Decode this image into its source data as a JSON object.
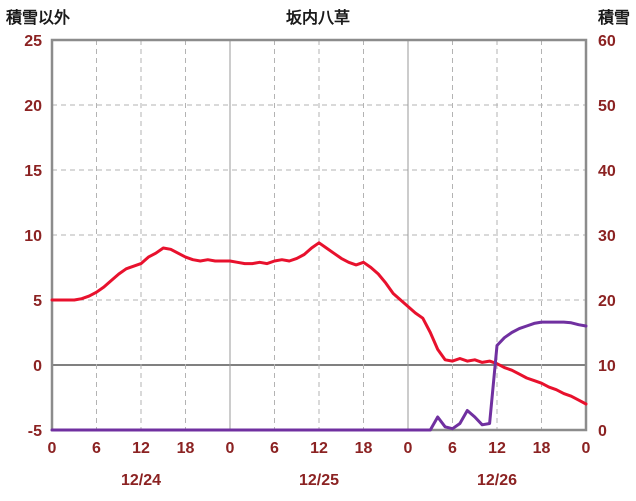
{
  "chart_data": {
    "type": "line",
    "title": "坂内八草",
    "left_axis": {
      "label": "積雪以外",
      "min": -5,
      "max": 25,
      "ticks": [
        25,
        20,
        15,
        10,
        5,
        0,
        -5
      ]
    },
    "right_axis": {
      "label": "積雪",
      "min": 0,
      "max": 60,
      "ticks": [
        60,
        50,
        40,
        30,
        20,
        10,
        0
      ]
    },
    "x_axis": {
      "min": 0,
      "max": 72,
      "tick_step": 6,
      "tick_labels": [
        "0",
        "6",
        "12",
        "18",
        "0",
        "6",
        "12",
        "18",
        "0",
        "6",
        "12",
        "18",
        "0"
      ],
      "day_labels": [
        {
          "label": "12/24",
          "x": 12
        },
        {
          "label": "12/25",
          "x": 36
        },
        {
          "label": "12/26",
          "x": 60
        }
      ],
      "day_boundaries": [
        24,
        48
      ]
    },
    "series": [
      {
        "name": "積雪以外",
        "axis": "left",
        "color": "#e8112d",
        "x_start": 0,
        "x_step": 1,
        "values": [
          5,
          5,
          5,
          5,
          5.1,
          5.3,
          5.6,
          6,
          6.5,
          7,
          7.4,
          7.6,
          7.8,
          8.3,
          8.6,
          9,
          8.9,
          8.6,
          8.3,
          8.1,
          8,
          8.1,
          8,
          8,
          8,
          7.9,
          7.8,
          7.8,
          7.9,
          7.8,
          8,
          8.1,
          8,
          8.2,
          8.5,
          9,
          9.4,
          9,
          8.6,
          8.2,
          7.9,
          7.7,
          7.9,
          7.5,
          7,
          6.3,
          5.5,
          5,
          4.5,
          4,
          3.6,
          2.5,
          1.2,
          0.4,
          0.3,
          0.5,
          0.3,
          0.4,
          0.2,
          0.3,
          0.1,
          -0.2,
          -0.4,
          -0.7,
          -1,
          -1.2,
          -1.4,
          -1.7,
          -1.9,
          -2.2,
          -2.4,
          -2.7,
          -3
        ]
      },
      {
        "name": "積雪",
        "axis": "right",
        "color": "#7030a0",
        "x_start": 0,
        "x_step": 1,
        "values": [
          0,
          0,
          0,
          0,
          0,
          0,
          0,
          0,
          0,
          0,
          0,
          0,
          0,
          0,
          0,
          0,
          0,
          0,
          0,
          0,
          0,
          0,
          0,
          0,
          0,
          0,
          0,
          0,
          0,
          0,
          0,
          0,
          0,
          0,
          0,
          0,
          0,
          0,
          0,
          0,
          0,
          0,
          0,
          0,
          0,
          0,
          0,
          0,
          0,
          0,
          0,
          0,
          2,
          0.5,
          0.2,
          1,
          3,
          2,
          0.8,
          1,
          13,
          14.2,
          15,
          15.6,
          16,
          16.4,
          16.6,
          16.6,
          16.6,
          16.6,
          16.5,
          16.2,
          16
        ]
      }
    ],
    "style": {
      "frame_color": "#8c8c8c",
      "grid_color": "#b3b3b3",
      "day_boundary_color": "#999999",
      "zero_line_color": "#808080",
      "tick_text_color": "#8b2222",
      "title_text_color": "#1a1a1a",
      "line_width": 3
    }
  }
}
